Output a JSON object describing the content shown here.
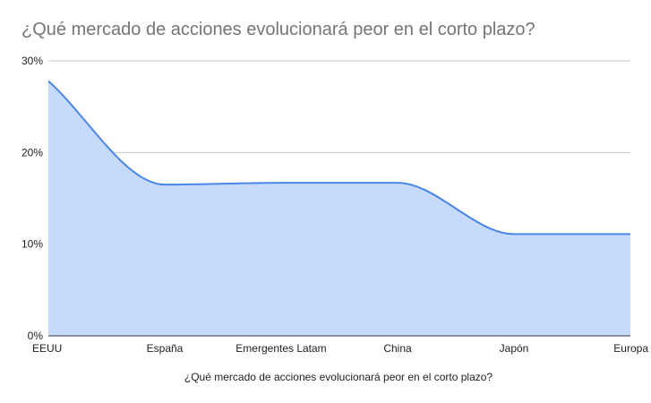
{
  "chart_data": {
    "type": "area",
    "title": "¿Qué mercado de acciones evolucionará peor en el corto plazo?",
    "xlabel": "¿Qué mercado de acciones evolucionará peor en el corto plazo?",
    "ylabel": "",
    "categories": [
      "EEUU",
      "España",
      "Emergentes Latam",
      "China",
      "Japón",
      "Europa"
    ],
    "series": [
      {
        "values": [
          27.8,
          16.5,
          16.7,
          16.7,
          11.1,
          11.1
        ]
      }
    ],
    "ylim": [
      0,
      30
    ],
    "yticks": [
      "0%",
      "10%",
      "20%",
      "30%"
    ],
    "grid": true,
    "legend": "none",
    "colors": {
      "line": "#4a86e8",
      "fill": "#c6dafc",
      "grid": "#cccccc",
      "baseline": "#333333"
    }
  }
}
